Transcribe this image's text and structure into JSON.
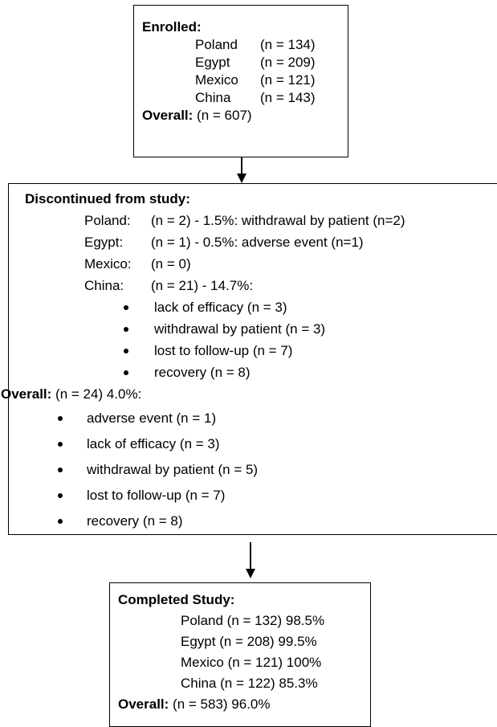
{
  "enrolled": {
    "title": "Enrolled:",
    "rows": [
      {
        "country": "Poland",
        "count": "(n = 134)"
      },
      {
        "country": "Egypt",
        "count": "(n = 209)"
      },
      {
        "country": "Mexico",
        "count": "(n = 121)"
      },
      {
        "country": "China",
        "count": "(n = 143)"
      }
    ],
    "overall_label": "Overall:",
    "overall_value": "(n = 607)"
  },
  "discontinued": {
    "title": "Discontinued from study:",
    "rows": [
      {
        "country": "Poland:",
        "detail": "(n = 2) - 1.5%: withdrawal by patient (n=2)"
      },
      {
        "country": "Egypt:",
        "detail": "(n = 1) - 0.5%: adverse event (n=1)"
      },
      {
        "country": "Mexico:",
        "detail": "(n = 0)"
      },
      {
        "country": "China:",
        "detail": "(n = 21) - 14.7%:"
      }
    ],
    "china_reasons": [
      "lack of efficacy (n = 3)",
      "withdrawal by patient (n = 3)",
      "lost to follow-up (n = 7)",
      "recovery (n = 8)"
    ],
    "overall_label": "Overall:",
    "overall_value": "(n = 24) 4.0%:",
    "overall_reasons": [
      "adverse event (n = 1)",
      "lack of efficacy (n = 3)",
      "withdrawal by patient (n = 5)",
      "lost to follow-up (n = 7)",
      "recovery (n = 8)"
    ]
  },
  "completed": {
    "title": "Completed Study:",
    "rows": [
      "Poland (n = 132) 98.5%",
      "Egypt (n = 208) 99.5%",
      "Mexico (n = 121) 100%",
      "China (n = 122) 85.3%"
    ],
    "overall_label": "Overall:",
    "overall_value": "(n = 583) 96.0%"
  }
}
